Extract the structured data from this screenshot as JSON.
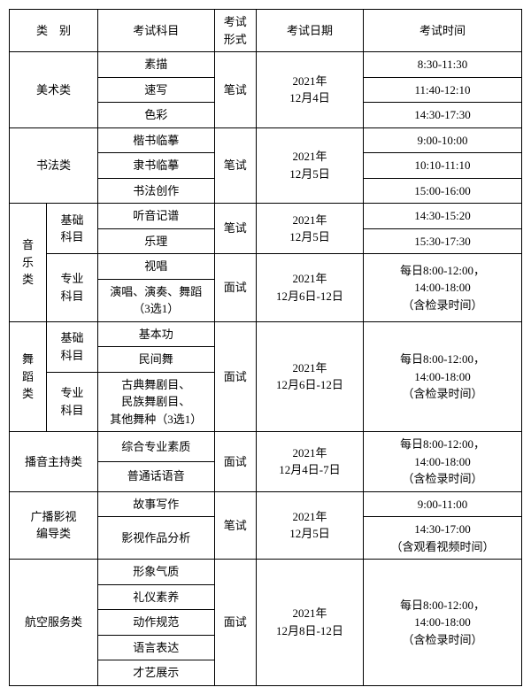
{
  "headers": {
    "category": "类　别",
    "subject": "考试科目",
    "form": "考试\n形式",
    "date": "考试日期",
    "time": "考试时间"
  },
  "cat": {
    "art": "美术类",
    "calli": "书法类",
    "music": "音\n乐\n类",
    "music_basic": "基础\n科目",
    "music_pro": "专业\n科目",
    "dance": "舞\n蹈\n类",
    "dance_basic": "基础\n科目",
    "dance_pro": "专业\n科目",
    "broadcast": "播音主持类",
    "filmtv": "广播影视\n编导类",
    "aviation": "航空服务类"
  },
  "subj": {
    "sketch": "素描",
    "quick": "速写",
    "color": "色彩",
    "kai": "楷书临摹",
    "li": "隶书临摹",
    "create": "书法创作",
    "ear": "听音记谱",
    "theory": "乐理",
    "sight": "视唱",
    "perform3": "演唱、演奏、舞蹈\n（3选1）",
    "basic_skill": "基本功",
    "folk_dance": "民间舞",
    "dance3": "古典舞剧目、\n民族舞剧目、\n其他舞种（3选1）",
    "pro_quality": "综合专业素质",
    "mandarin": "普通话语音",
    "story": "故事写作",
    "film_analysis": "影视作品分析",
    "image": "形象气质",
    "manner": "礼仪素养",
    "action": "动作规范",
    "speech": "语言表达",
    "talent": "才艺展示"
  },
  "form": {
    "written": "笔试",
    "interview": "面试"
  },
  "date": {
    "d1204": "2021年\n12月4日",
    "d1205": "2021年\n12月5日",
    "d1206_12": "2021年\n12月6日-12日",
    "d1204_7": "2021年\n12月4日-7日",
    "d1208_12": "2021年\n12月8日-12日"
  },
  "time": {
    "t0830_1130": "8:30-11:30",
    "t1140_1210": "11:40-12:10",
    "t1430_1730": "14:30-17:30",
    "t0900_1000": "9:00-10:00",
    "t1010_1110": "10:10-11:10",
    "t1500_1600": "15:00-16:00",
    "t1430_1520": "14:30-15:20",
    "t1530_1730": "15:30-17:30",
    "daily_record": "每日8:00-12:00，\n14:00-18:00\n（含检录时间）",
    "t0900_1100": "9:00-11:00",
    "t1430_1700_video": "14:30-17:00\n（含观看视频时间）"
  }
}
